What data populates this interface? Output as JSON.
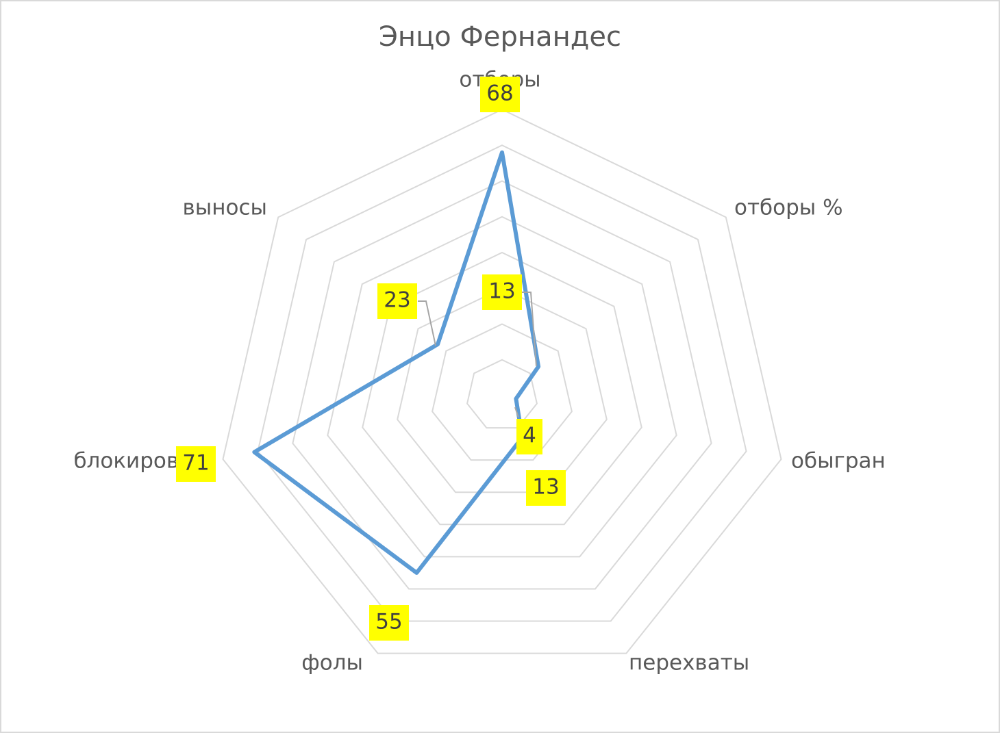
{
  "chart_data": {
    "type": "radar",
    "title": "Энцо Фернандес",
    "categories": [
      "отборы",
      "отборы %",
      "обыгран",
      "перехваты",
      "фолы",
      "блокировки",
      "выносы"
    ],
    "values": [
      68,
      13,
      4,
      13,
      55,
      71,
      23
    ],
    "color": "#5b9bd5",
    "rlim": [
      0,
      80
    ],
    "rticks": [
      10,
      20,
      30,
      40,
      50,
      60,
      70,
      80
    ],
    "grid": true
  }
}
